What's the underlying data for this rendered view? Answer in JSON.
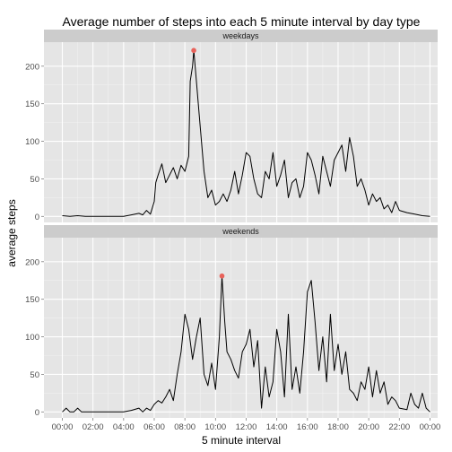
{
  "chart_data": {
    "type": "line",
    "title": "Average number of steps into each 5 minute interval by day type",
    "xlabel": "5 minute interval",
    "ylabel": "average steps",
    "x_unit": "hour of day",
    "xlim": [
      -1.2,
      24.5
    ],
    "ylim": [
      -8,
      232
    ],
    "x_ticks": [
      0,
      2,
      4,
      6,
      8,
      10,
      12,
      14,
      16,
      18,
      20,
      22,
      24
    ],
    "x_tick_labels": [
      "00:00",
      "02:00",
      "04:00",
      "06:00",
      "08:00",
      "10:00",
      "12:00",
      "14:00",
      "16:00",
      "18:00",
      "20:00",
      "22:00",
      "00:00"
    ],
    "y_ticks": [
      0,
      50,
      100,
      150,
      200
    ],
    "grid": true,
    "line_color": "#000000",
    "max_point_color": "#e8625a",
    "panel_background": "#e5e5e5",
    "strip_background": "#cccccc",
    "facets": [
      {
        "label": "weekdays",
        "max_point": {
          "x": 8.58,
          "y": 221
        },
        "series": {
          "x": [
            0,
            0.5,
            1,
            1.5,
            2,
            2.5,
            3,
            3.5,
            4,
            4.5,
            5,
            5.25,
            5.5,
            5.75,
            6,
            6.1,
            6.25,
            6.5,
            6.75,
            7,
            7.25,
            7.5,
            7.75,
            8,
            8.25,
            8.35,
            8.5,
            8.58,
            8.75,
            9,
            9.25,
            9.5,
            9.75,
            10,
            10.25,
            10.5,
            10.75,
            11,
            11.25,
            11.5,
            11.75,
            12,
            12.25,
            12.5,
            12.75,
            13,
            13.25,
            13.5,
            13.75,
            14,
            14.25,
            14.5,
            14.75,
            15,
            15.25,
            15.5,
            15.75,
            16,
            16.25,
            16.5,
            16.75,
            17,
            17.25,
            17.5,
            17.75,
            18,
            18.25,
            18.5,
            18.75,
            19,
            19.25,
            19.5,
            19.75,
            20,
            20.25,
            20.5,
            20.75,
            21,
            21.25,
            21.5,
            21.75,
            22,
            22.5,
            23,
            23.5,
            24
          ],
          "y": [
            1,
            0,
            1,
            0,
            0,
            0,
            0,
            0,
            0,
            2,
            4,
            2,
            8,
            3,
            20,
            45,
            55,
            70,
            45,
            55,
            65,
            50,
            68,
            60,
            80,
            180,
            200,
            221,
            180,
            120,
            60,
            25,
            35,
            15,
            20,
            30,
            20,
            35,
            60,
            30,
            55,
            85,
            80,
            50,
            30,
            25,
            60,
            50,
            85,
            40,
            55,
            75,
            25,
            45,
            50,
            25,
            40,
            85,
            75,
            55,
            30,
            80,
            60,
            40,
            75,
            85,
            95,
            60,
            105,
            80,
            40,
            50,
            35,
            15,
            30,
            20,
            25,
            10,
            15,
            5,
            20,
            8,
            5,
            3,
            1,
            0
          ]
        }
      },
      {
        "label": "weekends",
        "max_point": {
          "x": 10.42,
          "y": 181
        },
        "series": {
          "x": [
            0,
            0.25,
            0.5,
            0.75,
            1,
            1.25,
            1.5,
            2,
            2.5,
            3,
            3.5,
            4,
            4.5,
            5,
            5.25,
            5.5,
            5.75,
            6,
            6.25,
            6.5,
            6.75,
            7,
            7.25,
            7.5,
            7.75,
            8,
            8.25,
            8.5,
            8.75,
            9,
            9.25,
            9.5,
            9.75,
            10,
            10.25,
            10.42,
            10.6,
            10.75,
            11,
            11.25,
            11.5,
            11.75,
            12,
            12.25,
            12.5,
            12.75,
            13,
            13.25,
            13.5,
            13.75,
            14,
            14.25,
            14.5,
            14.75,
            15,
            15.25,
            15.5,
            15.75,
            16,
            16.25,
            16.5,
            16.75,
            17,
            17.25,
            17.5,
            17.75,
            18,
            18.25,
            18.5,
            18.75,
            19,
            19.25,
            19.5,
            19.75,
            20,
            20.25,
            20.5,
            20.75,
            21,
            21.25,
            21.5,
            21.75,
            22,
            22.5,
            22.75,
            23,
            23.25,
            23.5,
            23.75,
            24
          ],
          "y": [
            0,
            5,
            0,
            0,
            5,
            0,
            0,
            0,
            0,
            0,
            0,
            0,
            2,
            5,
            0,
            5,
            2,
            10,
            15,
            12,
            20,
            30,
            15,
            50,
            80,
            130,
            110,
            70,
            100,
            125,
            50,
            35,
            65,
            30,
            100,
            181,
            120,
            80,
            70,
            55,
            45,
            80,
            90,
            110,
            60,
            95,
            5,
            60,
            20,
            40,
            110,
            80,
            20,
            130,
            30,
            60,
            25,
            80,
            160,
            175,
            120,
            55,
            100,
            40,
            130,
            55,
            90,
            50,
            80,
            30,
            25,
            15,
            40,
            30,
            60,
            20,
            55,
            25,
            40,
            10,
            20,
            15,
            5,
            3,
            25,
            10,
            5,
            25,
            5,
            0
          ]
        }
      }
    ]
  }
}
